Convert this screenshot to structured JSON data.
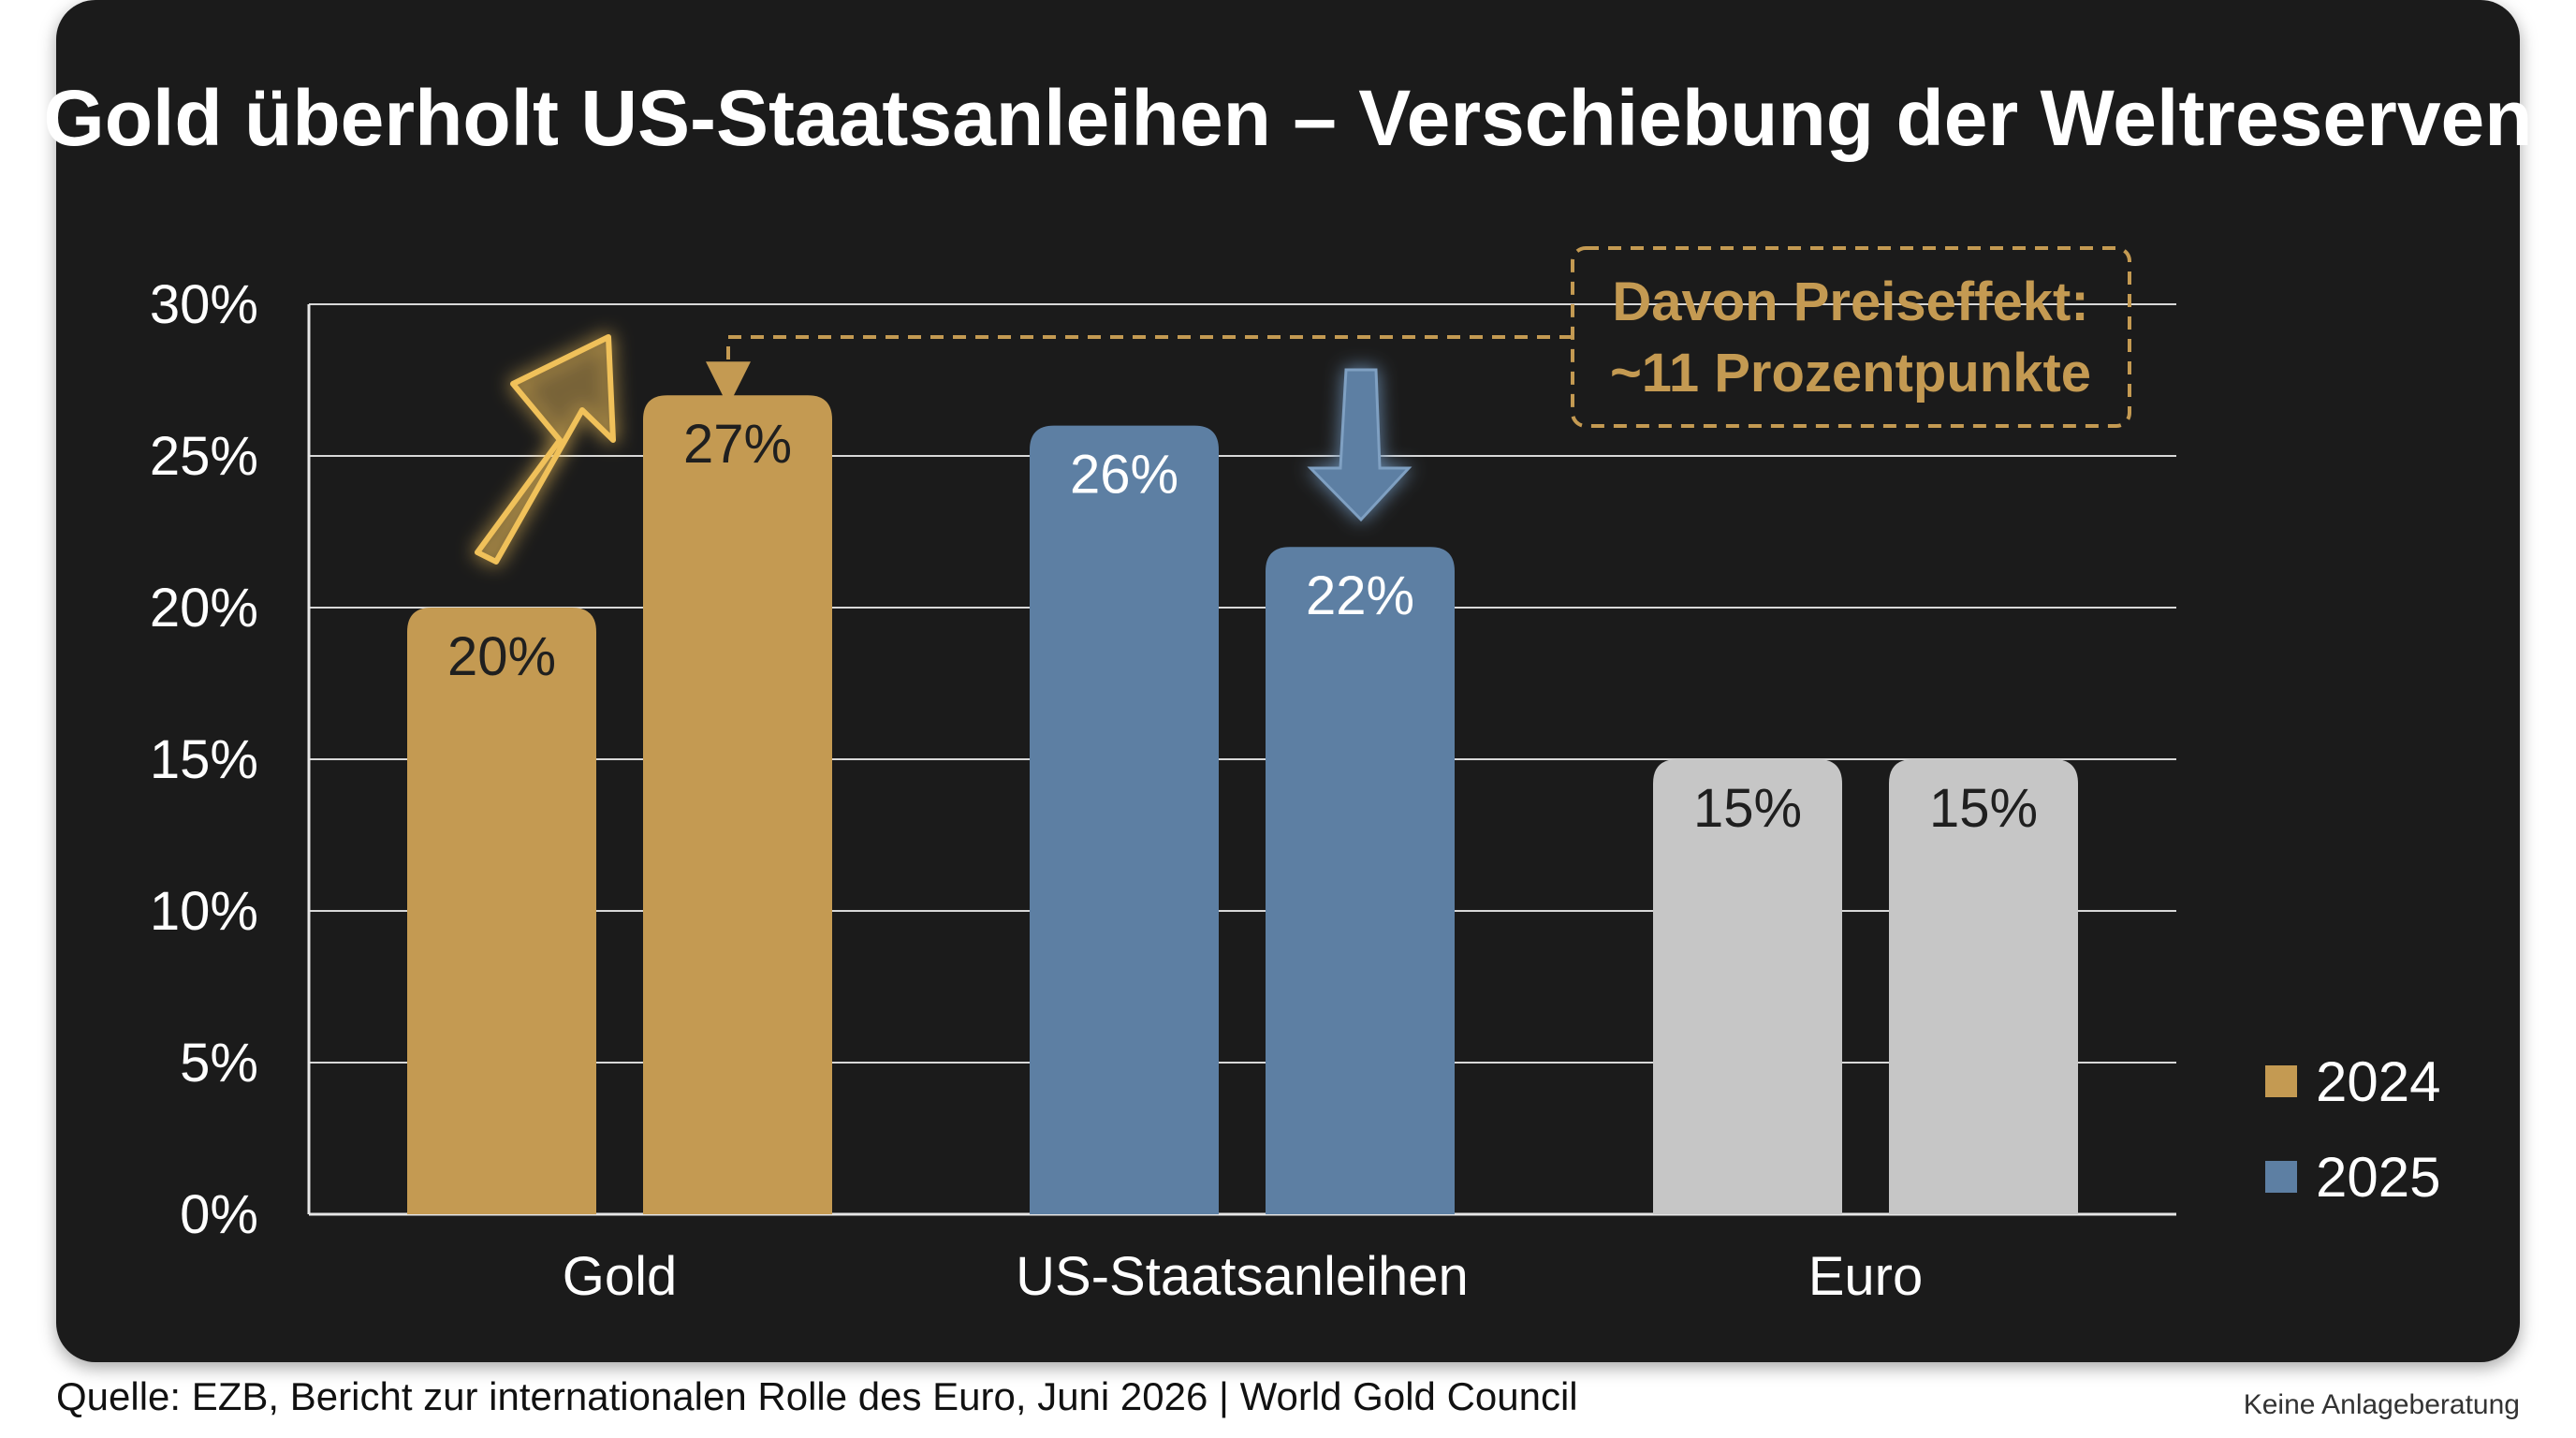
{
  "title": "Gold überholt US-Staatsanleihen – Verschiebung der Weltreserven",
  "chart_data": {
    "type": "bar",
    "categories": [
      "Gold",
      "US-Staatsanleihen",
      "Euro"
    ],
    "series": [
      {
        "name": "2024",
        "values": [
          20,
          26,
          15
        ],
        "labels": [
          "20%",
          "26%",
          "15%"
        ]
      },
      {
        "name": "2025",
        "values": [
          27,
          22,
          15
        ],
        "labels": [
          "27%",
          "22%",
          "15%"
        ]
      }
    ],
    "ylim": [
      0,
      30
    ],
    "yticks": [
      {
        "value": 0,
        "label": "0%"
      },
      {
        "value": 5,
        "label": "5%"
      },
      {
        "value": 10,
        "label": "10%"
      },
      {
        "value": 15,
        "label": "15%"
      },
      {
        "value": 20,
        "label": "20%"
      },
      {
        "value": 25,
        "label": "25%"
      },
      {
        "value": 30,
        "label": "30%"
      }
    ],
    "grid": true,
    "legend_position": "bottom-right",
    "category_colors": [
      "#c49a52",
      "#5d7fa3",
      "#c6c6c6"
    ],
    "legend_colors": [
      "#c49a52",
      "#5d7fa3"
    ],
    "label_colors": [
      "#1f1f1f",
      "#ffffff",
      "#1f1f1f"
    ],
    "annotation": {
      "lines": [
        "Davon Preiseffekt:",
        "~11 Prozentpunkte"
      ],
      "color": "#c49a52"
    },
    "trend_arrows": [
      {
        "category": "Gold",
        "direction": "up",
        "color": "#f0c15a"
      },
      {
        "category": "US-Staatsanleihen",
        "direction": "down",
        "color": "#5d7fa3"
      }
    ]
  },
  "footer": {
    "source": "Quelle: EZB, Bericht zur internationalen Rolle des Euro, Juni 2026 | World Gold Council",
    "disclaimer": "Keine Anlageberatung"
  }
}
